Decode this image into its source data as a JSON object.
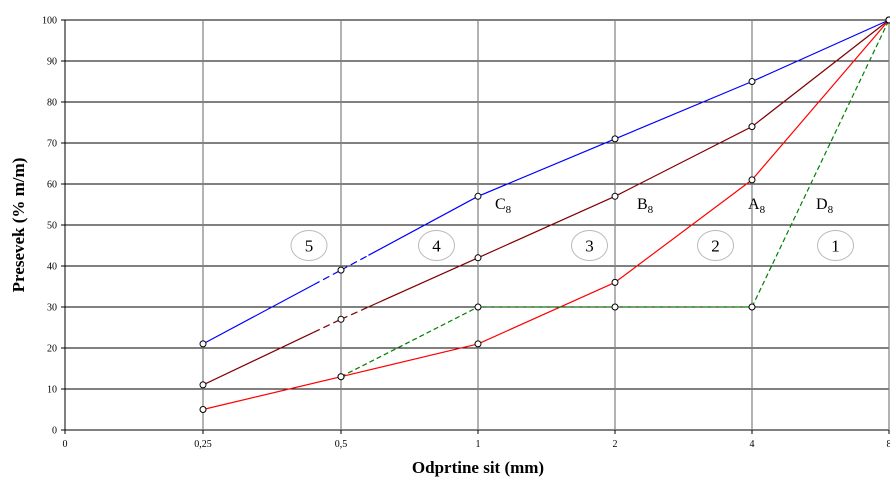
{
  "chart_data": {
    "type": "line",
    "xlabel": "Odprtine sit (mm)",
    "ylabel": "Presevek (% m/m)",
    "x_ticks": [
      "0",
      "0,25",
      "0,5",
      "1",
      "2",
      "4",
      "8"
    ],
    "y_ticks": [
      "0",
      "10",
      "20",
      "30",
      "40",
      "50",
      "60",
      "70",
      "80",
      "90",
      "100"
    ],
    "ylim": [
      0,
      100
    ],
    "x_scale": "categorical sieve sizes (log-spaced)",
    "grid": true,
    "series": [
      {
        "name": "C8",
        "label_main": "C",
        "label_sub": "8",
        "color": "#0000ff",
        "x": [
          "0,25",
          "0,5",
          "1",
          "2",
          "4",
          "8"
        ],
        "values": [
          21,
          39,
          57,
          71,
          85,
          100
        ],
        "dashed_segment": "0,25-1"
      },
      {
        "name": "B8",
        "label_main": "B",
        "label_sub": "8",
        "color": "#800000",
        "x": [
          "0,25",
          "0,5",
          "1",
          "2",
          "4",
          "8"
        ],
        "values": [
          11,
          27,
          42,
          57,
          74,
          100
        ],
        "dashed_segment": "0,25-1"
      },
      {
        "name": "A8",
        "label_main": "A",
        "label_sub": "8",
        "color": "#ff0000",
        "x": [
          "0,25",
          "0,5",
          "1",
          "2",
          "4",
          "8"
        ],
        "values": [
          5,
          13,
          21,
          36,
          61,
          100
        ],
        "dashed_segment": ""
      },
      {
        "name": "D8",
        "label_main": "D",
        "label_sub": "8",
        "color": "#008000",
        "x": [
          "0,5",
          "1",
          "2",
          "4",
          "8"
        ],
        "values": [
          13,
          30,
          30,
          30,
          100
        ],
        "dashed_segment": "all"
      }
    ],
    "zones": [
      "5",
      "4",
      "3",
      "2",
      "1"
    ]
  }
}
